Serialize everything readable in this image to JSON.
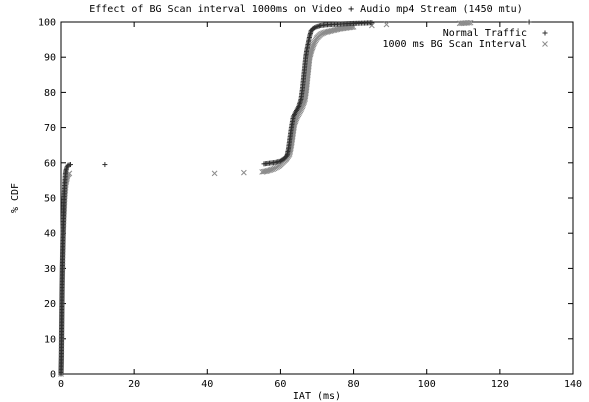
{
  "chart_data": {
    "type": "scatter",
    "title": "Effect of BG Scan interval 1000ms on Video + Audio mp4 Stream (1450 mtu)",
    "xlabel": "IAT (ms)",
    "ylabel": "% CDF",
    "xlim": [
      0,
      140
    ],
    "ylim": [
      0,
      100
    ],
    "xticks": [
      0,
      20,
      40,
      60,
      80,
      100,
      120,
      140
    ],
    "yticks": [
      0,
      10,
      20,
      30,
      40,
      50,
      60,
      70,
      80,
      90,
      100
    ],
    "grid": false,
    "legend_position": "top-right",
    "series": [
      {
        "name": "Normal Traffic",
        "marker": "plus",
        "color": "#303030",
        "points": [
          [
            0,
            0
          ],
          [
            0.1,
            5
          ],
          [
            0.15,
            10
          ],
          [
            0.2,
            15
          ],
          [
            0.25,
            20
          ],
          [
            0.3,
            25
          ],
          [
            0.35,
            30
          ],
          [
            0.45,
            35
          ],
          [
            0.55,
            40
          ],
          [
            0.7,
            45
          ],
          [
            0.85,
            50
          ],
          [
            1.0,
            54
          ],
          [
            1.2,
            57
          ],
          [
            1.5,
            58.5
          ],
          [
            1.9,
            59.3
          ],
          [
            2.6,
            59.5
          ],
          [
            12,
            59.5
          ],
          [
            55.5,
            59.7
          ],
          [
            57,
            59.9
          ],
          [
            58.5,
            60.1
          ],
          [
            60,
            60.5
          ],
          [
            61,
            61.2
          ],
          [
            61.8,
            62
          ],
          [
            62.2,
            64
          ],
          [
            62.6,
            67
          ],
          [
            63,
            70
          ],
          [
            63.5,
            73
          ],
          [
            64.2,
            74.5
          ],
          [
            65,
            76
          ],
          [
            65.6,
            78
          ],
          [
            66,
            81
          ],
          [
            66.3,
            84
          ],
          [
            66.6,
            87
          ],
          [
            66.9,
            90
          ],
          [
            67.2,
            92
          ],
          [
            67.6,
            94
          ],
          [
            68,
            96
          ],
          [
            68.4,
            97.5
          ],
          [
            69,
            98.2
          ],
          [
            70,
            98.7
          ],
          [
            71,
            99
          ],
          [
            72.5,
            99.2
          ],
          [
            74,
            99.3
          ],
          [
            76,
            99.4
          ],
          [
            78,
            99.5
          ],
          [
            80,
            99.6
          ],
          [
            83,
            99.7
          ],
          [
            85,
            99.8
          ],
          [
            128,
            100
          ]
        ]
      },
      {
        "name": "1000 ms BG Scan Interval",
        "marker": "cross",
        "color": "#8c8c8c",
        "points": [
          [
            0,
            0
          ],
          [
            0.1,
            5
          ],
          [
            0.15,
            10
          ],
          [
            0.2,
            15
          ],
          [
            0.25,
            20
          ],
          [
            0.3,
            25
          ],
          [
            0.4,
            30
          ],
          [
            0.5,
            35
          ],
          [
            0.6,
            40
          ],
          [
            0.8,
            45
          ],
          [
            1.0,
            50
          ],
          [
            1.3,
            54
          ],
          [
            1.8,
            56.5
          ],
          [
            2.3,
            57
          ],
          [
            42,
            57
          ],
          [
            50,
            57.2
          ],
          [
            55,
            57.4
          ],
          [
            56.5,
            57.7
          ],
          [
            58,
            58.2
          ],
          [
            59.5,
            59
          ],
          [
            60.5,
            60
          ],
          [
            61.5,
            61
          ],
          [
            62.5,
            62.5
          ],
          [
            63,
            65
          ],
          [
            63.4,
            68
          ],
          [
            63.8,
            71
          ],
          [
            64.5,
            73
          ],
          [
            65.3,
            74.5
          ],
          [
            66,
            76
          ],
          [
            66.7,
            78
          ],
          [
            67.1,
            81
          ],
          [
            67.4,
            84
          ],
          [
            67.7,
            87
          ],
          [
            68,
            90
          ],
          [
            68.5,
            92
          ],
          [
            69.2,
            94
          ],
          [
            70,
            95.5
          ],
          [
            71,
            96.5
          ],
          [
            72,
            97
          ],
          [
            74,
            97.5
          ],
          [
            76,
            98
          ],
          [
            78,
            98.3
          ],
          [
            80,
            98.6
          ],
          [
            85,
            99
          ],
          [
            89,
            99.3
          ],
          [
            109,
            99.6
          ],
          [
            112,
            99.8
          ]
        ]
      }
    ]
  }
}
